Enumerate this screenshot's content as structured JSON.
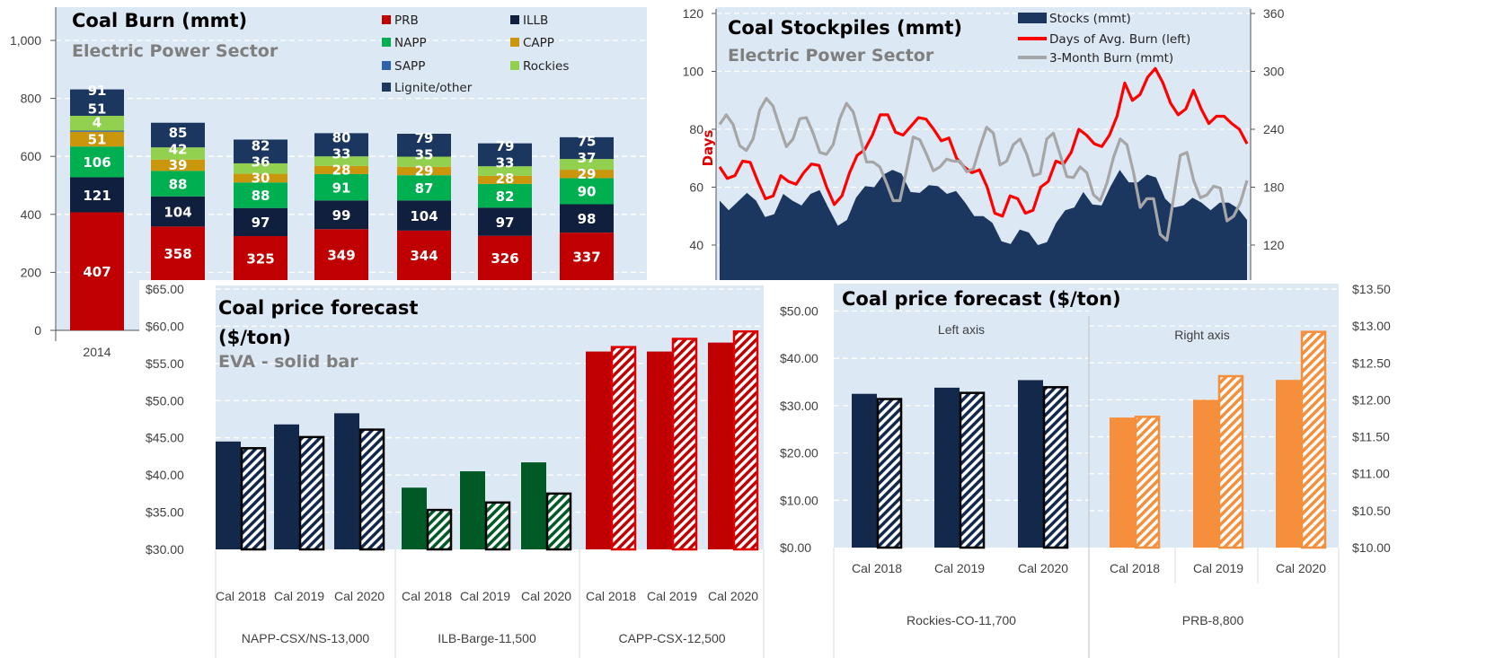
{
  "chart_data": [
    {
      "type": "bar",
      "stacked": true,
      "title": "Coal Burn (mmt)",
      "subtitle": "Electric Power Sector",
      "categories": [
        "2014",
        "",
        "",
        "",
        "",
        "",
        ""
      ],
      "ylim": [
        0,
        1000
      ],
      "yticks": [
        "0",
        "200",
        "400",
        "600",
        "800",
        "1,000"
      ],
      "grid": true,
      "legend_position": "top-right",
      "series": [
        {
          "name": "PRB",
          "color": "#c00000",
          "values": [
            407,
            358,
            325,
            349,
            344,
            326,
            337
          ]
        },
        {
          "name": "ILLB",
          "color": "#0f1f3d",
          "values": [
            121,
            104,
            97,
            99,
            104,
            97,
            98
          ]
        },
        {
          "name": "NAPP",
          "color": "#00b050",
          "values": [
            106,
            88,
            88,
            91,
            87,
            82,
            90
          ]
        },
        {
          "name": "CAPP",
          "color": "#c9960c",
          "values": [
            51,
            39,
            30,
            28,
            29,
            28,
            29
          ]
        },
        {
          "name": "SAPP",
          "color": "#2e62ac",
          "values": [
            4,
            null,
            null,
            null,
            null,
            null,
            null
          ]
        },
        {
          "name": "Rockies",
          "color": "#92d050",
          "values": [
            51,
            42,
            36,
            33,
            35,
            33,
            37
          ]
        },
        {
          "name": "Lignite/other",
          "color": "#1b365f",
          "values": [
            91,
            85,
            82,
            80,
            79,
            79,
            75
          ]
        }
      ]
    },
    {
      "type": "area",
      "title": "Coal Stockpiles (mmt)",
      "subtitle": "Electric Power Sector",
      "ylabel": "Days",
      "ylim_left": [
        40,
        120
      ],
      "yticks_left": [
        "40",
        "60",
        "80",
        "100",
        "120"
      ],
      "ylim_right": [
        120,
        360
      ],
      "yticks_right": [
        "120",
        "180",
        "240",
        "300",
        "360"
      ],
      "grid": true,
      "legend_position": "top-right",
      "series": [
        {
          "name": "Stocks (mmt)",
          "type": "area",
          "axis": "right",
          "color": "#1b365f",
          "values": [
            166,
            156,
            165,
            174,
            166,
            149,
            152,
            173,
            166,
            161,
            173,
            177,
            158,
            140,
            146,
            169,
            181,
            180,
            193,
            198,
            194,
            175,
            174,
            182,
            181,
            173,
            176,
            164,
            150,
            150,
            143,
            124,
            121,
            136,
            133,
            120,
            123,
            143,
            156,
            159,
            175,
            162,
            161,
            181,
            198,
            185,
            185,
            193,
            190,
            168,
            159,
            161,
            169,
            164,
            156,
            164,
            164,
            158,
            146
          ]
        },
        {
          "name": "Days of Avg. Burn (left)",
          "type": "line",
          "axis": "left",
          "color": "#ff0000",
          "values": [
            67,
            63,
            64,
            69,
            68.6,
            62,
            56,
            57,
            64,
            62,
            61,
            65,
            68,
            67.5,
            60,
            54,
            57,
            65,
            71,
            73,
            78,
            85,
            85,
            79,
            78,
            81,
            84,
            83.5,
            80,
            76,
            77,
            70,
            67,
            65,
            66,
            60,
            51,
            50,
            57,
            56,
            51,
            52,
            60,
            62,
            69,
            68,
            72,
            80,
            78,
            75,
            74,
            78,
            84.6,
            96,
            90,
            92,
            98,
            101,
            96,
            89,
            85,
            87,
            93.5,
            87,
            82,
            84.5,
            84.5,
            82,
            80,
            75
          ]
        },
        {
          "name": "3-Month Burn (mmt)",
          "type": "line",
          "axis": "right",
          "color": "#a6a6a6",
          "values": [
            245,
            255,
            245,
            223,
            218,
            230,
            260,
            272,
            264,
            242,
            222,
            230,
            251,
            252,
            236,
            216,
            214,
            224,
            251,
            267,
            258,
            233,
            206,
            206,
            201,
            184,
            166,
            166,
            198,
            232,
            229,
            214,
            197,
            201,
            209,
            207,
            207,
            196,
            199,
            222,
            242,
            236,
            203,
            207,
            224,
            230,
            214,
            192,
            194,
            230,
            236,
            214,
            191,
            190,
            201,
            195,
            172,
            166,
            184,
            211,
            230,
            224,
            195,
            159,
            168,
            168,
            131,
            125,
            169,
            213,
            216,
            187,
            169,
            172,
            181,
            179,
            145,
            150,
            164,
            187
          ]
        }
      ]
    },
    {
      "type": "bar",
      "title": "Coal price forecast",
      "title_line2": "($/ton)",
      "subtitle": "EVA - solid bar",
      "ylim": [
        30,
        65
      ],
      "yticks": [
        "$30.00",
        "$35.00",
        "$40.00",
        "$45.00",
        "$50.00",
        "$55.00",
        "$60.00",
        "$65.00"
      ],
      "grid": true,
      "groups": [
        {
          "name": "NAPP-CSX/NS-13,000",
          "color": "#13294b",
          "outline": "#000000",
          "categories": [
            "Cal 2018",
            "Cal 2019",
            "Cal 2020"
          ],
          "solid": [
            44.5,
            46.8,
            48.3
          ],
          "hatched": [
            43.6,
            45.1,
            46.1
          ]
        },
        {
          "name": "ILB-Barge-11,500",
          "color": "#005a26",
          "outline": "#000000",
          "categories": [
            "Cal 2018",
            "Cal 2019",
            "Cal 2020"
          ],
          "solid": [
            38.3,
            40.5,
            41.7
          ],
          "hatched": [
            35.3,
            36.3,
            37.5
          ]
        },
        {
          "name": "CAPP-CSX-12,500",
          "color": "#c00000",
          "outline": "#e00000",
          "categories": [
            "Cal 2018",
            "Cal 2019",
            "Cal 2020"
          ],
          "solid": [
            56.6,
            56.6,
            57.8
          ],
          "hatched": [
            57.2,
            58.3,
            59.3
          ]
        }
      ]
    },
    {
      "type": "bar",
      "title": "Coal price forecast ($/ton)",
      "ylim_left": [
        0,
        50
      ],
      "yticks_left": [
        "$0.00",
        "$10.00",
        "$20.00",
        "$30.00",
        "$40.00",
        "$50.00"
      ],
      "ylim_right": [
        10,
        13.5
      ],
      "yticks_right": [
        "$10.00",
        "$10.50",
        "$11.00",
        "$11.50",
        "$12.00",
        "$12.50",
        "$13.00",
        "$13.50"
      ],
      "grid": true,
      "groups": [
        {
          "name": "Rockies-CO-11,700",
          "note": "Left axis",
          "axis": "left",
          "color": "#13294b",
          "outline": "#000000",
          "categories": [
            "Cal 2018",
            "Cal 2019",
            "Cal 2020"
          ],
          "solid": [
            32.5,
            33.8,
            35.4
          ],
          "hatched": [
            31.4,
            32.7,
            33.9
          ]
        },
        {
          "name": "PRB-8,800",
          "note": "Right axis",
          "axis": "right",
          "color": "#f58f3c",
          "outline": "#f58f3c",
          "categories": [
            "Cal 2018",
            "Cal 2019",
            "Cal 2020"
          ],
          "solid": [
            11.76,
            12.0,
            12.27
          ],
          "hatched": [
            11.77,
            12.32,
            12.92
          ]
        }
      ]
    }
  ]
}
